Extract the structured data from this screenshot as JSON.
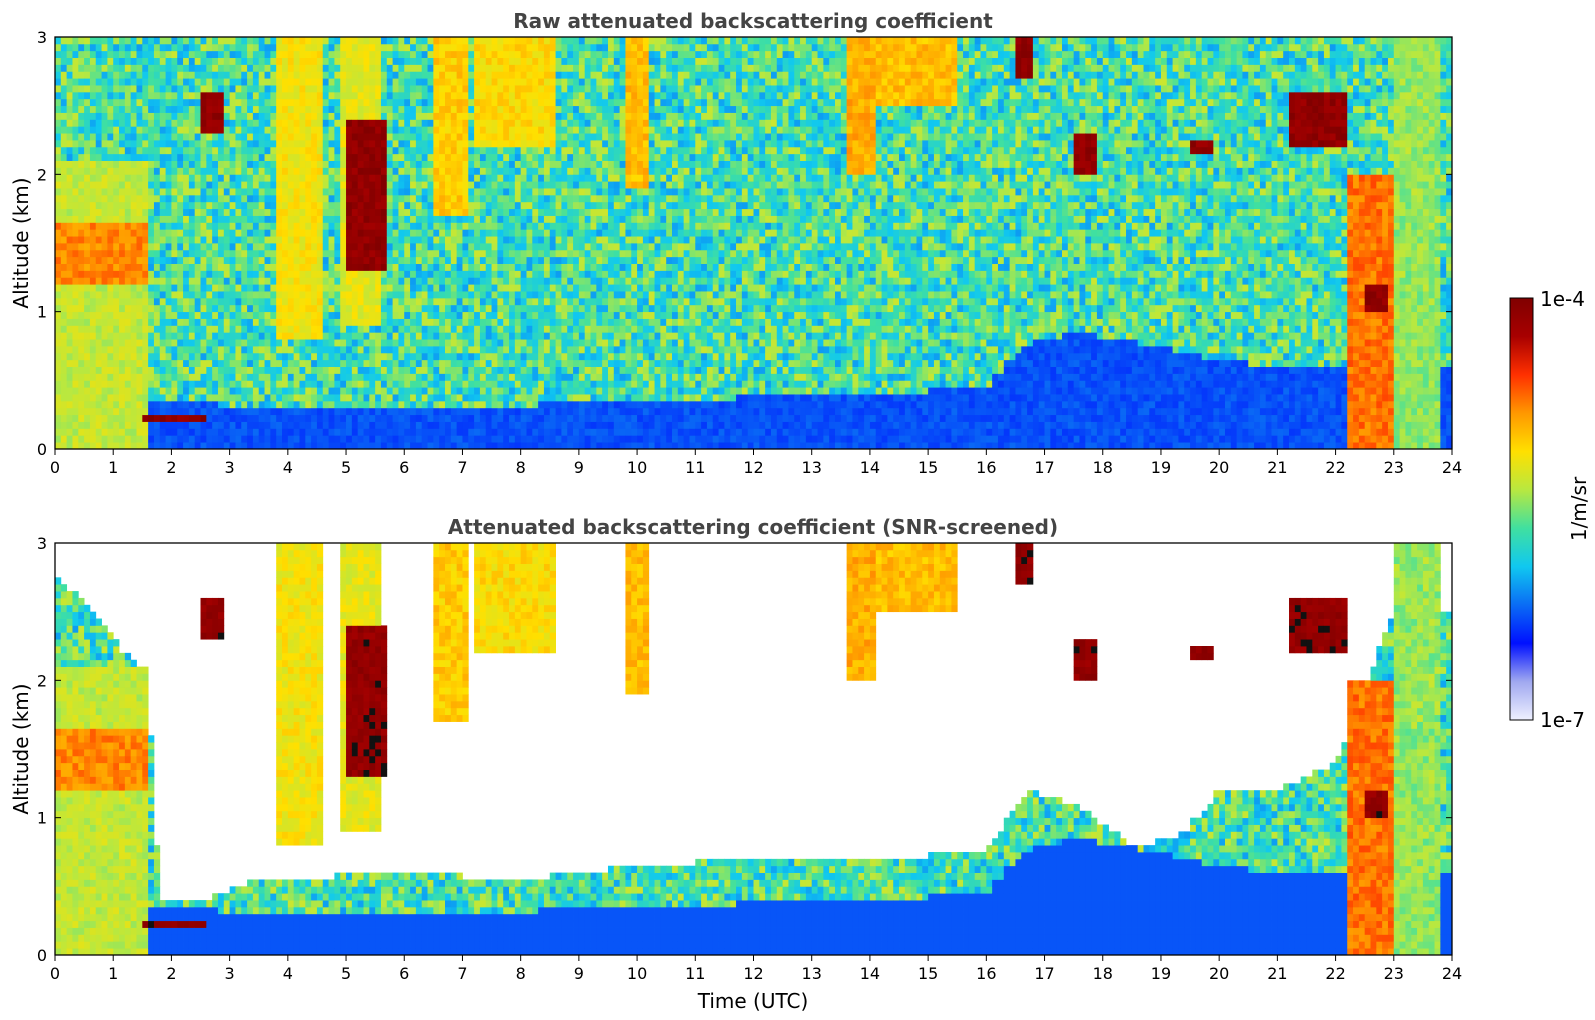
{
  "chart_data": [
    {
      "type": "heatmap",
      "title": "Raw attenuated backscattering coefficient",
      "xlabel": "",
      "ylabel": "Altitude (km)",
      "xlim": [
        0,
        24
      ],
      "ylim": [
        0,
        3
      ],
      "x_ticks": [
        "0",
        "1",
        "2",
        "3",
        "4",
        "5",
        "6",
        "7",
        "8",
        "9",
        "10",
        "11",
        "12",
        "13",
        "14",
        "15",
        "16",
        "17",
        "18",
        "19",
        "20",
        "21",
        "22",
        "23",
        "24"
      ],
      "y_ticks": [
        "0",
        "1",
        "2",
        "3"
      ],
      "boundary_layer_top_km": [
        [
          0,
          0.3
        ],
        [
          2,
          0.35
        ],
        [
          3,
          0.32
        ],
        [
          6,
          0.3
        ],
        [
          8,
          0.32
        ],
        [
          10,
          0.35
        ],
        [
          12,
          0.38
        ],
        [
          14,
          0.4
        ],
        [
          16,
          0.45
        ],
        [
          16.6,
          0.75
        ],
        [
          17.5,
          0.85
        ],
        [
          19,
          0.75
        ],
        [
          20,
          0.65
        ],
        [
          21,
          0.6
        ],
        [
          22,
          0.6
        ],
        [
          24,
          0.6
        ]
      ],
      "features": [
        {
          "kind": "aerosol",
          "x": [
            0,
            1.6
          ],
          "y": [
            0,
            2.1
          ],
          "level": 0.6
        },
        {
          "kind": "aerosol",
          "x": [
            0.05,
            1.6
          ],
          "y": [
            1.2,
            1.65
          ],
          "level": 0.78
        },
        {
          "kind": "aerosol",
          "x": [
            3.8,
            4.6
          ],
          "y": [
            0.8,
            3.0
          ],
          "level": 0.66
        },
        {
          "kind": "aerosol",
          "x": [
            4.9,
            5.6
          ],
          "y": [
            0.9,
            3.0
          ],
          "level": 0.64
        },
        {
          "kind": "aerosol",
          "x": [
            6.5,
            7.1
          ],
          "y": [
            1.7,
            3.0
          ],
          "level": 0.7
        },
        {
          "kind": "aerosol",
          "x": [
            7.2,
            8.6
          ],
          "y": [
            2.2,
            3.0
          ],
          "level": 0.68
        },
        {
          "kind": "aerosol",
          "x": [
            9.8,
            10.2
          ],
          "y": [
            1.9,
            3.0
          ],
          "level": 0.72
        },
        {
          "kind": "aerosol",
          "x": [
            13.6,
            14.1
          ],
          "y": [
            2.0,
            3.0
          ],
          "level": 0.74
        },
        {
          "kind": "aerosol",
          "x": [
            14.1,
            15.5
          ],
          "y": [
            2.5,
            3.0
          ],
          "level": 0.72
        },
        {
          "kind": "aerosol",
          "x": [
            22.2,
            23.0
          ],
          "y": [
            0,
            2.0
          ],
          "level": 0.8
        },
        {
          "kind": "aerosol",
          "x": [
            23.0,
            23.8
          ],
          "y": [
            0,
            3.0
          ],
          "level": 0.55
        },
        {
          "kind": "cloud",
          "x": [
            1.5,
            2.6
          ],
          "y": [
            0.18,
            0.26
          ],
          "level": 1
        },
        {
          "kind": "cloud",
          "x": [
            2.5,
            2.9
          ],
          "y": [
            2.3,
            2.6
          ],
          "level": 1
        },
        {
          "kind": "cloud",
          "x": [
            5.0,
            5.7
          ],
          "y": [
            1.3,
            2.4
          ],
          "level": 1
        },
        {
          "kind": "cloud",
          "x": [
            16.5,
            16.8
          ],
          "y": [
            2.7,
            3.0
          ],
          "level": 1
        },
        {
          "kind": "cloud",
          "x": [
            17.5,
            17.9
          ],
          "y": [
            2.0,
            2.3
          ],
          "level": 1
        },
        {
          "kind": "cloud",
          "x": [
            19.5,
            19.9
          ],
          "y": [
            2.15,
            2.25
          ],
          "level": 1
        },
        {
          "kind": "cloud",
          "x": [
            21.2,
            22.2
          ],
          "y": [
            2.2,
            2.6
          ],
          "level": 1
        },
        {
          "kind": "cloud",
          "x": [
            22.5,
            22.9
          ],
          "y": [
            1.0,
            1.2
          ],
          "level": 1
        }
      ]
    },
    {
      "type": "heatmap",
      "title": "Attenuated backscattering coefficient (SNR-screened)",
      "xlabel": "Time (UTC)",
      "ylabel": "Altitude (km)",
      "xlim": [
        0,
        24
      ],
      "ylim": [
        0,
        3
      ],
      "x_ticks": [
        "0",
        "1",
        "2",
        "3",
        "4",
        "5",
        "6",
        "7",
        "8",
        "9",
        "10",
        "11",
        "12",
        "13",
        "14",
        "15",
        "16",
        "17",
        "18",
        "19",
        "20",
        "21",
        "22",
        "23",
        "24"
      ],
      "y_ticks": [
        "0",
        "1",
        "2",
        "3"
      ],
      "screened_top_km": [
        [
          0,
          2.8
        ],
        [
          1.6,
          2.0
        ],
        [
          1.8,
          0.4
        ],
        [
          2.5,
          0.4
        ],
        [
          3.5,
          0.55
        ],
        [
          6,
          0.6
        ],
        [
          8,
          0.55
        ],
        [
          10,
          0.65
        ],
        [
          12,
          0.7
        ],
        [
          14,
          0.7
        ],
        [
          16,
          0.75
        ],
        [
          16.7,
          1.2
        ],
        [
          17.5,
          1.1
        ],
        [
          18.5,
          0.8
        ],
        [
          19.3,
          0.85
        ],
        [
          20,
          1.2
        ],
        [
          21,
          1.2
        ],
        [
          22,
          1.4
        ],
        [
          23,
          2.5
        ],
        [
          24,
          2.5
        ]
      ],
      "features": [
        {
          "kind": "aerosol",
          "x": [
            0,
            1.6
          ],
          "y": [
            0,
            2.1
          ],
          "level": 0.6
        },
        {
          "kind": "aerosol",
          "x": [
            0.05,
            1.6
          ],
          "y": [
            1.2,
            1.65
          ],
          "level": 0.78
        },
        {
          "kind": "aerosol",
          "x": [
            3.8,
            4.6
          ],
          "y": [
            0.8,
            3.0
          ],
          "level": 0.66
        },
        {
          "kind": "aerosol",
          "x": [
            4.9,
            5.6
          ],
          "y": [
            0.9,
            3.0
          ],
          "level": 0.64
        },
        {
          "kind": "aerosol",
          "x": [
            6.5,
            7.1
          ],
          "y": [
            1.7,
            3.0
          ],
          "level": 0.7
        },
        {
          "kind": "aerosol",
          "x": [
            7.2,
            8.6
          ],
          "y": [
            2.2,
            3.0
          ],
          "level": 0.68
        },
        {
          "kind": "aerosol",
          "x": [
            9.8,
            10.2
          ],
          "y": [
            1.9,
            3.0
          ],
          "level": 0.72
        },
        {
          "kind": "aerosol",
          "x": [
            13.6,
            14.1
          ],
          "y": [
            2.0,
            3.0
          ],
          "level": 0.74
        },
        {
          "kind": "aerosol",
          "x": [
            14.1,
            15.5
          ],
          "y": [
            2.5,
            3.0
          ],
          "level": 0.72
        },
        {
          "kind": "aerosol",
          "x": [
            22.2,
            23.0
          ],
          "y": [
            0,
            2.0
          ],
          "level": 0.8
        },
        {
          "kind": "aerosol",
          "x": [
            23.0,
            23.8
          ],
          "y": [
            0,
            3.0
          ],
          "level": 0.55
        },
        {
          "kind": "cloud",
          "x": [
            1.5,
            2.6
          ],
          "y": [
            0.18,
            0.26
          ],
          "level": 1
        },
        {
          "kind": "cloud",
          "x": [
            2.5,
            2.9
          ],
          "y": [
            2.3,
            2.6
          ],
          "level": 1
        },
        {
          "kind": "cloud",
          "x": [
            5.0,
            5.7
          ],
          "y": [
            1.3,
            2.4
          ],
          "level": 1
        },
        {
          "kind": "cloud",
          "x": [
            16.5,
            16.8
          ],
          "y": [
            2.7,
            3.0
          ],
          "level": 1
        },
        {
          "kind": "cloud",
          "x": [
            17.5,
            17.9
          ],
          "y": [
            2.0,
            2.3
          ],
          "level": 1
        },
        {
          "kind": "cloud",
          "x": [
            19.5,
            19.9
          ],
          "y": [
            2.15,
            2.25
          ],
          "level": 1
        },
        {
          "kind": "cloud",
          "x": [
            21.2,
            22.2
          ],
          "y": [
            2.2,
            2.6
          ],
          "level": 1
        },
        {
          "kind": "cloud",
          "x": [
            22.5,
            22.9
          ],
          "y": [
            1.0,
            1.2
          ],
          "level": 1
        }
      ]
    }
  ],
  "colorbar": {
    "label": "1/m/sr",
    "max_label": "1e-4",
    "min_label": "1e-7",
    "range": [
      1e-07,
      0.0001
    ],
    "scale": "log",
    "colors": [
      "#eef0ff",
      "#a0a8f0",
      "#0010ff",
      "#0a6cf5",
      "#10c8f0",
      "#40e0a0",
      "#b8e840",
      "#ffe000",
      "#ff9800",
      "#ff3000",
      "#a80000",
      "#800000"
    ]
  }
}
